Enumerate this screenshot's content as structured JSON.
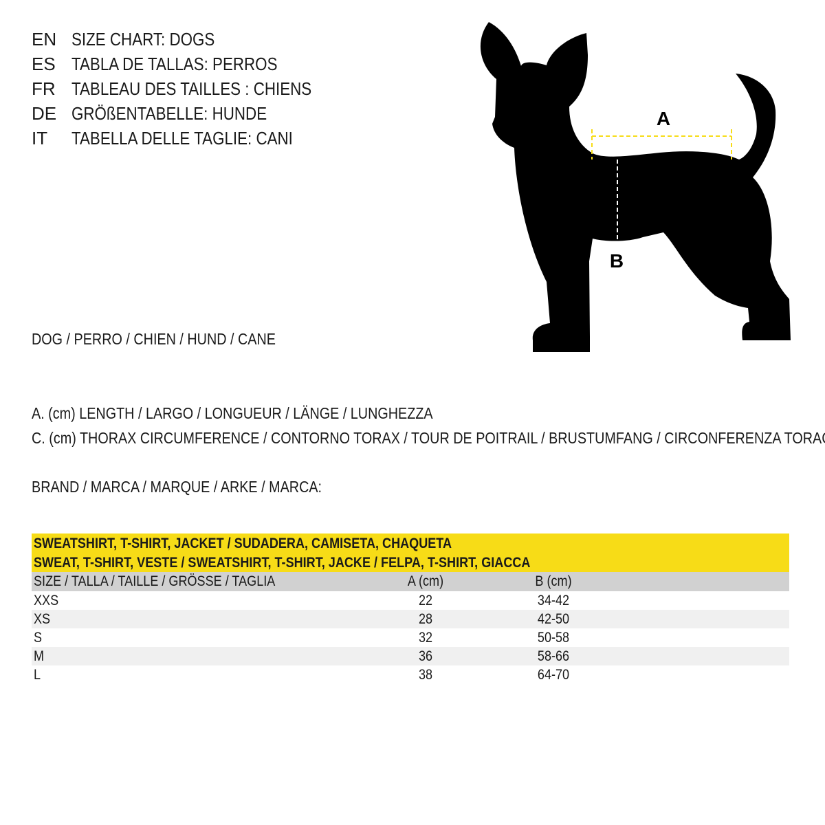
{
  "titles": [
    {
      "code": "EN",
      "text": "SIZE CHART: DOGS"
    },
    {
      "code": "ES",
      "text": "TABLA DE TALLAS: PERROS"
    },
    {
      "code": "FR",
      "text": "TABLEAU DES TAILLES : CHIENS"
    },
    {
      "code": "DE",
      "text": "GRÖßENTABELLE: HUNDE"
    },
    {
      "code": "IT",
      "text": "TABELLA DELLE TAGLIE: CANI"
    }
  ],
  "animal": "DOG / PERRO / CHIEN / HUND / CANE",
  "legend_a": "A. (cm) LENGTH / LARGO / LONGUEUR / LÄNGE / LUNGHEZZA",
  "legend_c": "C. (cm) THORAX CIRCUMFERENCE / CONTORNO TORAX / TOUR DE POITRAIL / BRUSTUMFANG / CIRCONFERENZA TORACE",
  "brand": "BRAND / MARCA / MARQUE / ARKE / MARCA:",
  "diagram": {
    "label_a": "A",
    "label_b": "B",
    "accent": "#f7dc17"
  },
  "table": {
    "title1": "SWEATSHIRT, T-SHIRT, JACKET / SUDADERA, CAMISETA, CHAQUETA",
    "title2": "SWEAT, T-SHIRT, VESTE / SWEATSHIRT, T-SHIRT, JACKE / FELPA, T-SHIRT, GIACCA",
    "headers": [
      "SIZE / TALLA / TAILLE / GRÖSSE / TAGLIA",
      "A (cm)",
      "B (cm)"
    ],
    "rows": [
      [
        "XXS",
        "22",
        "34-42"
      ],
      [
        "XS",
        "28",
        "42-50"
      ],
      [
        "S",
        "32",
        "50-58"
      ],
      [
        "M",
        "36",
        "58-66"
      ],
      [
        "L",
        "38",
        "64-70"
      ]
    ]
  }
}
